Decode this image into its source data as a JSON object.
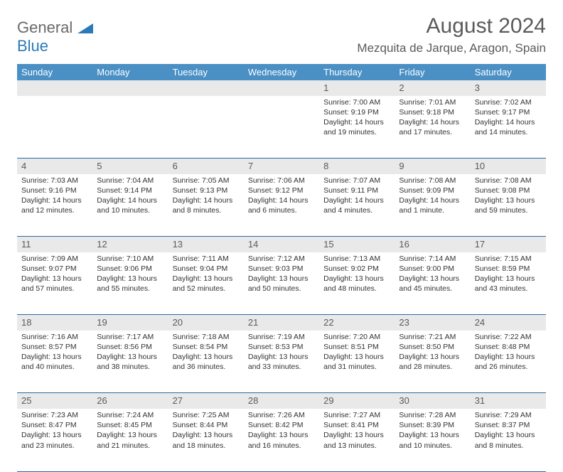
{
  "brand": {
    "name_gray": "General",
    "name_blue": "Blue"
  },
  "title": {
    "month": "August 2024",
    "location": "Mezquita de Jarque, Aragon, Spain"
  },
  "colors": {
    "header_bg": "#4a90c5",
    "header_text": "#ffffff",
    "daynum_bg": "#e9e9e9",
    "daynum_text": "#5a5a5a",
    "rule": "#2a6aa5",
    "body_text": "#333333",
    "logo_gray": "#6a6a6a",
    "logo_blue": "#2a7ab9"
  },
  "weekdays": [
    "Sunday",
    "Monday",
    "Tuesday",
    "Wednesday",
    "Thursday",
    "Friday",
    "Saturday"
  ],
  "weeks": [
    [
      {
        "n": "",
        "sr": "",
        "ss": "",
        "dl": ""
      },
      {
        "n": "",
        "sr": "",
        "ss": "",
        "dl": ""
      },
      {
        "n": "",
        "sr": "",
        "ss": "",
        "dl": ""
      },
      {
        "n": "",
        "sr": "",
        "ss": "",
        "dl": ""
      },
      {
        "n": "1",
        "sr": "Sunrise: 7:00 AM",
        "ss": "Sunset: 9:19 PM",
        "dl": "Daylight: 14 hours and 19 minutes."
      },
      {
        "n": "2",
        "sr": "Sunrise: 7:01 AM",
        "ss": "Sunset: 9:18 PM",
        "dl": "Daylight: 14 hours and 17 minutes."
      },
      {
        "n": "3",
        "sr": "Sunrise: 7:02 AM",
        "ss": "Sunset: 9:17 PM",
        "dl": "Daylight: 14 hours and 14 minutes."
      }
    ],
    [
      {
        "n": "4",
        "sr": "Sunrise: 7:03 AM",
        "ss": "Sunset: 9:16 PM",
        "dl": "Daylight: 14 hours and 12 minutes."
      },
      {
        "n": "5",
        "sr": "Sunrise: 7:04 AM",
        "ss": "Sunset: 9:14 PM",
        "dl": "Daylight: 14 hours and 10 minutes."
      },
      {
        "n": "6",
        "sr": "Sunrise: 7:05 AM",
        "ss": "Sunset: 9:13 PM",
        "dl": "Daylight: 14 hours and 8 minutes."
      },
      {
        "n": "7",
        "sr": "Sunrise: 7:06 AM",
        "ss": "Sunset: 9:12 PM",
        "dl": "Daylight: 14 hours and 6 minutes."
      },
      {
        "n": "8",
        "sr": "Sunrise: 7:07 AM",
        "ss": "Sunset: 9:11 PM",
        "dl": "Daylight: 14 hours and 4 minutes."
      },
      {
        "n": "9",
        "sr": "Sunrise: 7:08 AM",
        "ss": "Sunset: 9:09 PM",
        "dl": "Daylight: 14 hours and 1 minute."
      },
      {
        "n": "10",
        "sr": "Sunrise: 7:08 AM",
        "ss": "Sunset: 9:08 PM",
        "dl": "Daylight: 13 hours and 59 minutes."
      }
    ],
    [
      {
        "n": "11",
        "sr": "Sunrise: 7:09 AM",
        "ss": "Sunset: 9:07 PM",
        "dl": "Daylight: 13 hours and 57 minutes."
      },
      {
        "n": "12",
        "sr": "Sunrise: 7:10 AM",
        "ss": "Sunset: 9:06 PM",
        "dl": "Daylight: 13 hours and 55 minutes."
      },
      {
        "n": "13",
        "sr": "Sunrise: 7:11 AM",
        "ss": "Sunset: 9:04 PM",
        "dl": "Daylight: 13 hours and 52 minutes."
      },
      {
        "n": "14",
        "sr": "Sunrise: 7:12 AM",
        "ss": "Sunset: 9:03 PM",
        "dl": "Daylight: 13 hours and 50 minutes."
      },
      {
        "n": "15",
        "sr": "Sunrise: 7:13 AM",
        "ss": "Sunset: 9:02 PM",
        "dl": "Daylight: 13 hours and 48 minutes."
      },
      {
        "n": "16",
        "sr": "Sunrise: 7:14 AM",
        "ss": "Sunset: 9:00 PM",
        "dl": "Daylight: 13 hours and 45 minutes."
      },
      {
        "n": "17",
        "sr": "Sunrise: 7:15 AM",
        "ss": "Sunset: 8:59 PM",
        "dl": "Daylight: 13 hours and 43 minutes."
      }
    ],
    [
      {
        "n": "18",
        "sr": "Sunrise: 7:16 AM",
        "ss": "Sunset: 8:57 PM",
        "dl": "Daylight: 13 hours and 40 minutes."
      },
      {
        "n": "19",
        "sr": "Sunrise: 7:17 AM",
        "ss": "Sunset: 8:56 PM",
        "dl": "Daylight: 13 hours and 38 minutes."
      },
      {
        "n": "20",
        "sr": "Sunrise: 7:18 AM",
        "ss": "Sunset: 8:54 PM",
        "dl": "Daylight: 13 hours and 36 minutes."
      },
      {
        "n": "21",
        "sr": "Sunrise: 7:19 AM",
        "ss": "Sunset: 8:53 PM",
        "dl": "Daylight: 13 hours and 33 minutes."
      },
      {
        "n": "22",
        "sr": "Sunrise: 7:20 AM",
        "ss": "Sunset: 8:51 PM",
        "dl": "Daylight: 13 hours and 31 minutes."
      },
      {
        "n": "23",
        "sr": "Sunrise: 7:21 AM",
        "ss": "Sunset: 8:50 PM",
        "dl": "Daylight: 13 hours and 28 minutes."
      },
      {
        "n": "24",
        "sr": "Sunrise: 7:22 AM",
        "ss": "Sunset: 8:48 PM",
        "dl": "Daylight: 13 hours and 26 minutes."
      }
    ],
    [
      {
        "n": "25",
        "sr": "Sunrise: 7:23 AM",
        "ss": "Sunset: 8:47 PM",
        "dl": "Daylight: 13 hours and 23 minutes."
      },
      {
        "n": "26",
        "sr": "Sunrise: 7:24 AM",
        "ss": "Sunset: 8:45 PM",
        "dl": "Daylight: 13 hours and 21 minutes."
      },
      {
        "n": "27",
        "sr": "Sunrise: 7:25 AM",
        "ss": "Sunset: 8:44 PM",
        "dl": "Daylight: 13 hours and 18 minutes."
      },
      {
        "n": "28",
        "sr": "Sunrise: 7:26 AM",
        "ss": "Sunset: 8:42 PM",
        "dl": "Daylight: 13 hours and 16 minutes."
      },
      {
        "n": "29",
        "sr": "Sunrise: 7:27 AM",
        "ss": "Sunset: 8:41 PM",
        "dl": "Daylight: 13 hours and 13 minutes."
      },
      {
        "n": "30",
        "sr": "Sunrise: 7:28 AM",
        "ss": "Sunset: 8:39 PM",
        "dl": "Daylight: 13 hours and 10 minutes."
      },
      {
        "n": "31",
        "sr": "Sunrise: 7:29 AM",
        "ss": "Sunset: 8:37 PM",
        "dl": "Daylight: 13 hours and 8 minutes."
      }
    ]
  ]
}
